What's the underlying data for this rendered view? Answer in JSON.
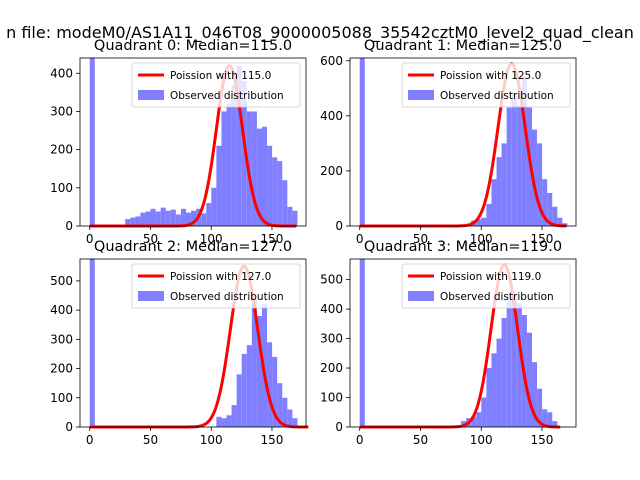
{
  "figure": {
    "suptitle": "n file: modeM0/AS1A11_046T08_9000005088_35542cztM0_level2_quad_clean"
  },
  "colors": {
    "histogram": "#7f7fff",
    "poisson_line": "#ff0000",
    "axes": "#000000",
    "background": "#ffffff"
  },
  "chart_data": [
    {
      "type": "histogram",
      "title": "Quadrant 0: Median=115.0",
      "xlim": [
        -8,
        178
      ],
      "ylim": [
        0,
        440
      ],
      "xticks": [
        0,
        50,
        100,
        150
      ],
      "yticks": [
        0,
        100,
        200,
        300,
        400
      ],
      "legend": {
        "position": "top-right",
        "line_label": "Poission with 115.0",
        "hist_label": "Observed distribution"
      },
      "bins": {
        "start": 0,
        "width": 4.17,
        "counts": [
          440,
          0,
          0,
          0,
          0,
          0,
          0,
          18,
          22,
          25,
          35,
          38,
          45,
          38,
          48,
          40,
          43,
          30,
          45,
          35,
          40,
          45,
          33,
          60,
          100,
          210,
          300,
          320,
          370,
          420,
          380,
          300,
          300,
          255,
          260,
          210,
          180,
          170,
          120,
          50,
          40
        ]
      },
      "poisson": {
        "mean": 115.0,
        "x_start": 0,
        "x_end": 170,
        "peak": 420
      }
    },
    {
      "type": "histogram",
      "title": "Quadrant 1: Median=125.0",
      "xlim": [
        -8,
        178
      ],
      "ylim": [
        0,
        610
      ],
      "xticks": [
        0,
        50,
        100,
        150
      ],
      "yticks": [
        0,
        200,
        400,
        600
      ],
      "legend": {
        "position": "top-right",
        "line_label": "Poission with 125.0",
        "hist_label": "Observed distribution"
      },
      "bins": {
        "start": 0,
        "width": 4.17,
        "counts": [
          610,
          0,
          0,
          0,
          0,
          0,
          0,
          0,
          0,
          0,
          0,
          0,
          0,
          0,
          0,
          0,
          0,
          0,
          0,
          0,
          0,
          0,
          20,
          25,
          30,
          80,
          170,
          250,
          300,
          430,
          480,
          440,
          540,
          430,
          350,
          300,
          170,
          120,
          70,
          30,
          10
        ]
      },
      "poisson": {
        "mean": 125.0,
        "x_start": 0,
        "x_end": 170,
        "peak": 590
      }
    },
    {
      "type": "histogram",
      "title": "Quadrant 2: Median=127.0",
      "xlim": [
        -8,
        178
      ],
      "ylim": [
        0,
        575
      ],
      "xticks": [
        0,
        50,
        100,
        150
      ],
      "yticks": [
        0,
        100,
        200,
        300,
        400,
        500
      ],
      "legend": {
        "position": "top-right",
        "line_label": "Poission with 127.0",
        "hist_label": "Observed distribution"
      },
      "bins": {
        "start": 0,
        "width": 4.17,
        "counts": [
          575,
          0,
          0,
          0,
          0,
          0,
          0,
          0,
          0,
          0,
          0,
          0,
          0,
          0,
          0,
          0,
          0,
          0,
          0,
          0,
          0,
          0,
          0,
          0,
          0,
          35,
          30,
          40,
          75,
          180,
          250,
          280,
          440,
          380,
          420,
          290,
          240,
          150,
          100,
          60,
          30
        ]
      },
      "poisson": {
        "mean": 127.0,
        "x_start": 0,
        "x_end": 180,
        "peak": 550
      }
    },
    {
      "type": "histogram",
      "title": "Quadrant 3: Median=119.0",
      "xlim": [
        -8,
        178
      ],
      "ylim": [
        0,
        570
      ],
      "xticks": [
        0,
        50,
        100,
        150
      ],
      "yticks": [
        0,
        100,
        200,
        300,
        400,
        500
      ],
      "legend": {
        "position": "top-right",
        "line_label": "Poission with 119.0",
        "hist_label": "Observed distribution"
      },
      "bins": {
        "start": 0,
        "width": 4.17,
        "counts": [
          570,
          0,
          0,
          0,
          0,
          0,
          0,
          0,
          0,
          0,
          0,
          0,
          0,
          0,
          0,
          0,
          0,
          0,
          0,
          0,
          20,
          30,
          35,
          50,
          100,
          200,
          250,
          300,
          370,
          450,
          450,
          420,
          380,
          320,
          220,
          130,
          60,
          50,
          20,
          0,
          0
        ]
      },
      "poisson": {
        "mean": 119.0,
        "x_start": 0,
        "x_end": 165,
        "peak": 550
      }
    }
  ]
}
